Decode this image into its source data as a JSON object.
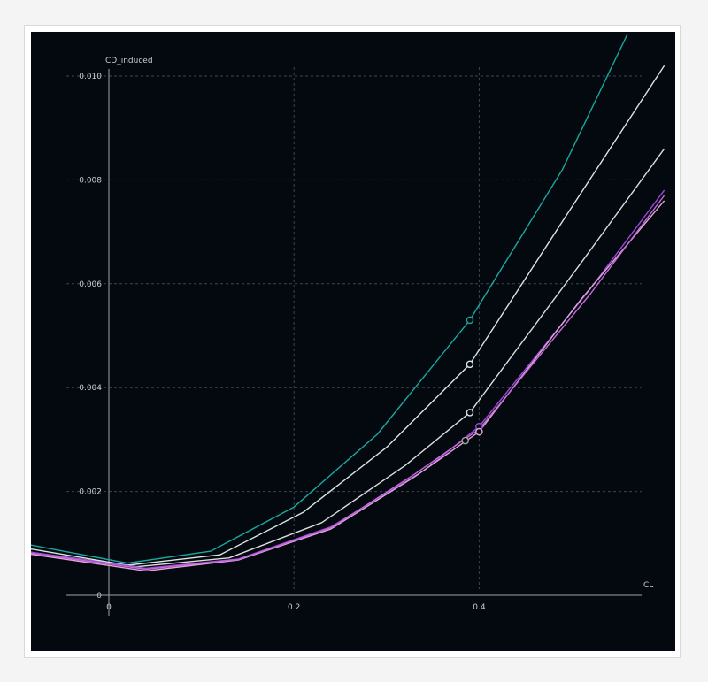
{
  "chart_data": {
    "type": "line",
    "title": "",
    "xlabel": "CL",
    "ylabel": "CD_induced",
    "xlim": [
      -0.12,
      0.6
    ],
    "ylim": [
      -0.0005,
      0.0108
    ],
    "x_ticks": [
      0,
      0.2,
      0.4
    ],
    "x_tick_labels": [
      "0",
      "0.2",
      "0.4"
    ],
    "y_ticks": [
      0,
      0.002,
      0.004,
      0.006,
      0.008,
      0.01
    ],
    "y_tick_labels": [
      "0",
      "0.002",
      "0.004",
      "0.006",
      "0.008",
      "0.010"
    ],
    "grid": true,
    "background": "#03090f",
    "series": [
      {
        "color": "#1aa8a0",
        "x": [
          -0.12,
          -0.1,
          0.02,
          0.11,
          0.2,
          0.29,
          0.39,
          0.49,
          0.56
        ],
        "y": [
          0.00112,
          0.00102,
          0.00062,
          0.00085,
          0.0017,
          0.0031,
          0.0053,
          0.0082,
          0.0108
        ],
        "marker": {
          "x": 0.39,
          "y": 0.0053
        }
      },
      {
        "color": "#d8e6e4",
        "x": [
          -0.12,
          -0.08,
          0.02,
          0.12,
          0.21,
          0.3,
          0.39,
          0.49,
          0.6
        ],
        "y": [
          0.00098,
          0.00088,
          0.00058,
          0.00078,
          0.0016,
          0.00285,
          0.00445,
          0.0072,
          0.0102
        ],
        "marker": {
          "x": 0.39,
          "y": 0.00445
        }
      },
      {
        "color": "#dcdcdc",
        "x": [
          -0.12,
          -0.08,
          0.03,
          0.13,
          0.23,
          0.32,
          0.39,
          0.51,
          0.6
        ],
        "y": [
          0.00092,
          0.00082,
          0.00055,
          0.00072,
          0.0014,
          0.0025,
          0.00352,
          0.0064,
          0.0086
        ],
        "marker": {
          "x": 0.39,
          "y": 0.00352
        }
      },
      {
        "color": "#9a48d8",
        "x": [
          -0.12,
          -0.08,
          0.04,
          0.14,
          0.24,
          0.34,
          0.4,
          0.52,
          0.6
        ],
        "y": [
          0.00095,
          0.00082,
          0.00052,
          0.0007,
          0.00132,
          0.0024,
          0.00325,
          0.0059,
          0.0078
        ],
        "marker": {
          "x": 0.4,
          "y": 0.00325
        }
      },
      {
        "color": "#e0a6d8",
        "x": [
          -0.12,
          -0.08,
          0.04,
          0.14,
          0.24,
          0.33,
          0.4,
          0.51,
          0.6
        ],
        "y": [
          0.00088,
          0.00078,
          0.00047,
          0.00068,
          0.00128,
          0.00228,
          0.00315,
          0.0057,
          0.0076
        ],
        "marker": {
          "x": 0.4,
          "y": 0.00315
        }
      },
      {
        "color": "#c86ad8",
        "x": [
          -0.12,
          -0.08,
          0.04,
          0.14,
          0.24,
          0.33,
          0.4,
          0.52,
          0.6
        ],
        "y": [
          0.00091,
          0.0008,
          0.0005,
          0.00069,
          0.0013,
          0.00233,
          0.0032,
          0.0058,
          0.0077
        ],
        "marker": null
      },
      {
        "color": "#a0a0a0",
        "x": [
          0.385
        ],
        "y": [
          0.00298
        ],
        "marker": {
          "x": 0.385,
          "y": 0.00298
        }
      }
    ]
  }
}
